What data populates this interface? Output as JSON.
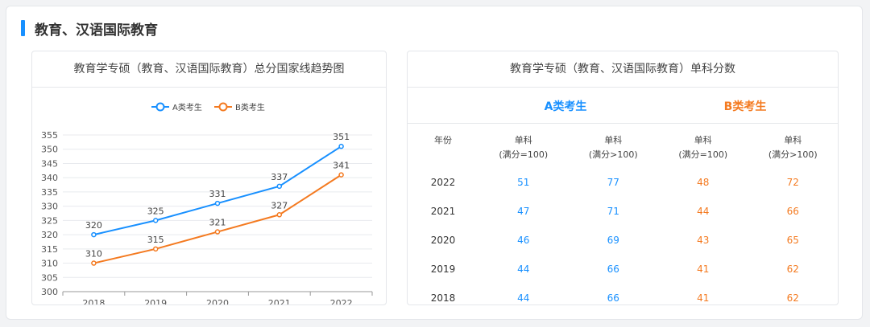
{
  "section": {
    "title": "教育、汉语国际教育"
  },
  "left_card": {
    "title": "教育学专硕（教育、汉语国际教育）总分国家线趋势图"
  },
  "right_card": {
    "title": "教育学专硕（教育、汉语国际教育）单科分数",
    "group_a": "A类考生",
    "group_b": "B类考生",
    "col_year": "年份",
    "col_heads": [
      {
        "line1": "单科",
        "line2": "(满分=100)"
      },
      {
        "line1": "单科",
        "line2": "(满分>100)"
      },
      {
        "line1": "单科",
        "line2": "(满分=100)"
      },
      {
        "line1": "单科",
        "line2": "(满分>100)"
      }
    ],
    "rows": [
      {
        "year": "2022",
        "a1": "51",
        "a2": "77",
        "b1": "48",
        "b2": "72"
      },
      {
        "year": "2021",
        "a1": "47",
        "a2": "71",
        "b1": "44",
        "b2": "66"
      },
      {
        "year": "2020",
        "a1": "46",
        "a2": "69",
        "b1": "43",
        "b2": "65"
      },
      {
        "year": "2019",
        "a1": "44",
        "a2": "66",
        "b1": "41",
        "b2": "62"
      },
      {
        "year": "2018",
        "a1": "44",
        "a2": "66",
        "b1": "41",
        "b2": "62"
      }
    ]
  },
  "chart_data": {
    "type": "line",
    "title": "教育学专硕（教育、汉语国际教育）总分国家线趋势图",
    "x": [
      "2018",
      "2019",
      "2020",
      "2021",
      "2022"
    ],
    "series": [
      {
        "name": "A类考生",
        "values": [
          320,
          325,
          331,
          337,
          351
        ],
        "color": "#1890ff"
      },
      {
        "name": "B类考生",
        "values": [
          310,
          315,
          321,
          327,
          341
        ],
        "color": "#f47a20"
      }
    ],
    "ylim": [
      300,
      355
    ],
    "yticks": [
      300,
      305,
      310,
      315,
      320,
      325,
      330,
      335,
      340,
      345,
      350,
      355
    ],
    "grid": true,
    "legend_position": "top-center",
    "data_labels": true
  }
}
